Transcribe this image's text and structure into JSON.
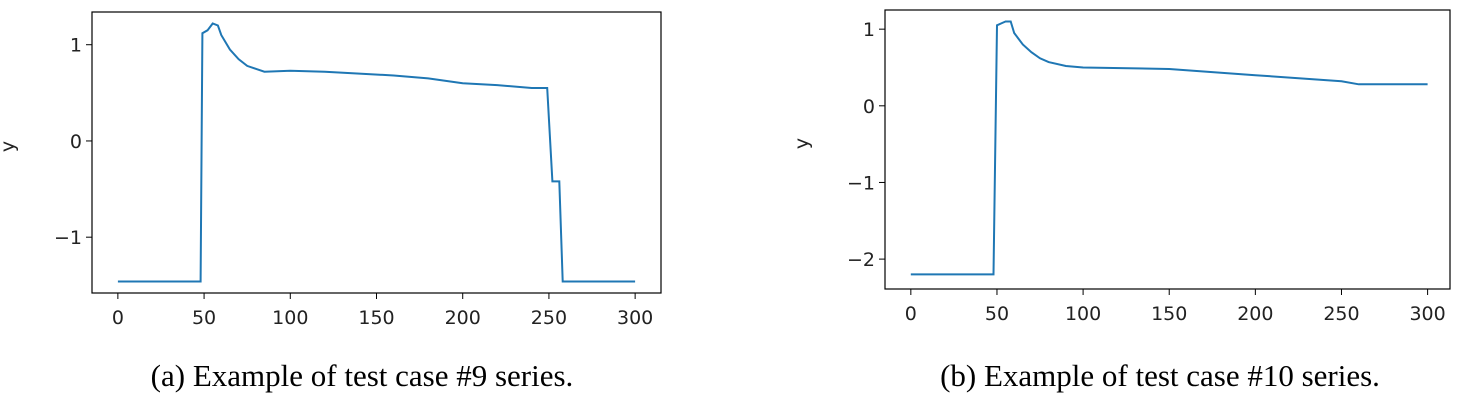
{
  "chart_data": [
    {
      "type": "line",
      "ylabel": "y",
      "caption": "(a) Example of test case #9 series.",
      "xlim": [
        -15,
        315
      ],
      "ylim": [
        -1.58,
        1.34
      ],
      "xticks": [
        0,
        50,
        100,
        150,
        200,
        250,
        300
      ],
      "yticks": [
        {
          "value": -1,
          "label": "−1"
        },
        0,
        1
      ],
      "series": [
        {
          "color": "#1f77b4",
          "x": [
            0,
            48,
            49,
            52,
            55,
            58,
            60,
            65,
            70,
            75,
            80,
            85,
            100,
            120,
            140,
            160,
            180,
            200,
            220,
            240,
            249,
            252,
            256,
            258,
            300
          ],
          "values": [
            -1.46,
            -1.46,
            1.12,
            1.15,
            1.22,
            1.2,
            1.1,
            0.95,
            0.85,
            0.78,
            0.75,
            0.72,
            0.73,
            0.72,
            0.7,
            0.68,
            0.65,
            0.6,
            0.58,
            0.55,
            0.55,
            -0.42,
            -0.42,
            -1.46,
            -1.46
          ]
        }
      ]
    },
    {
      "type": "line",
      "ylabel": "y",
      "caption": "(b) Example of test case #10 series.",
      "xlim": [
        -15,
        313
      ],
      "ylim": [
        -2.39,
        1.25
      ],
      "xticks": [
        0,
        50,
        100,
        150,
        200,
        250,
        300
      ],
      "yticks": [
        {
          "value": -2,
          "label": "−2"
        },
        {
          "value": -1,
          "label": "−1"
        },
        0,
        1
      ],
      "series": [
        {
          "color": "#1f77b4",
          "x": [
            0,
            48,
            50,
            53,
            55,
            58,
            60,
            65,
            70,
            75,
            80,
            90,
            100,
            150,
            200,
            250,
            260,
            300
          ],
          "values": [
            -2.2,
            -2.2,
            1.05,
            1.08,
            1.1,
            1.1,
            0.95,
            0.8,
            0.7,
            0.62,
            0.57,
            0.52,
            0.5,
            0.48,
            0.4,
            0.32,
            0.28,
            0.28
          ]
        }
      ]
    }
  ]
}
